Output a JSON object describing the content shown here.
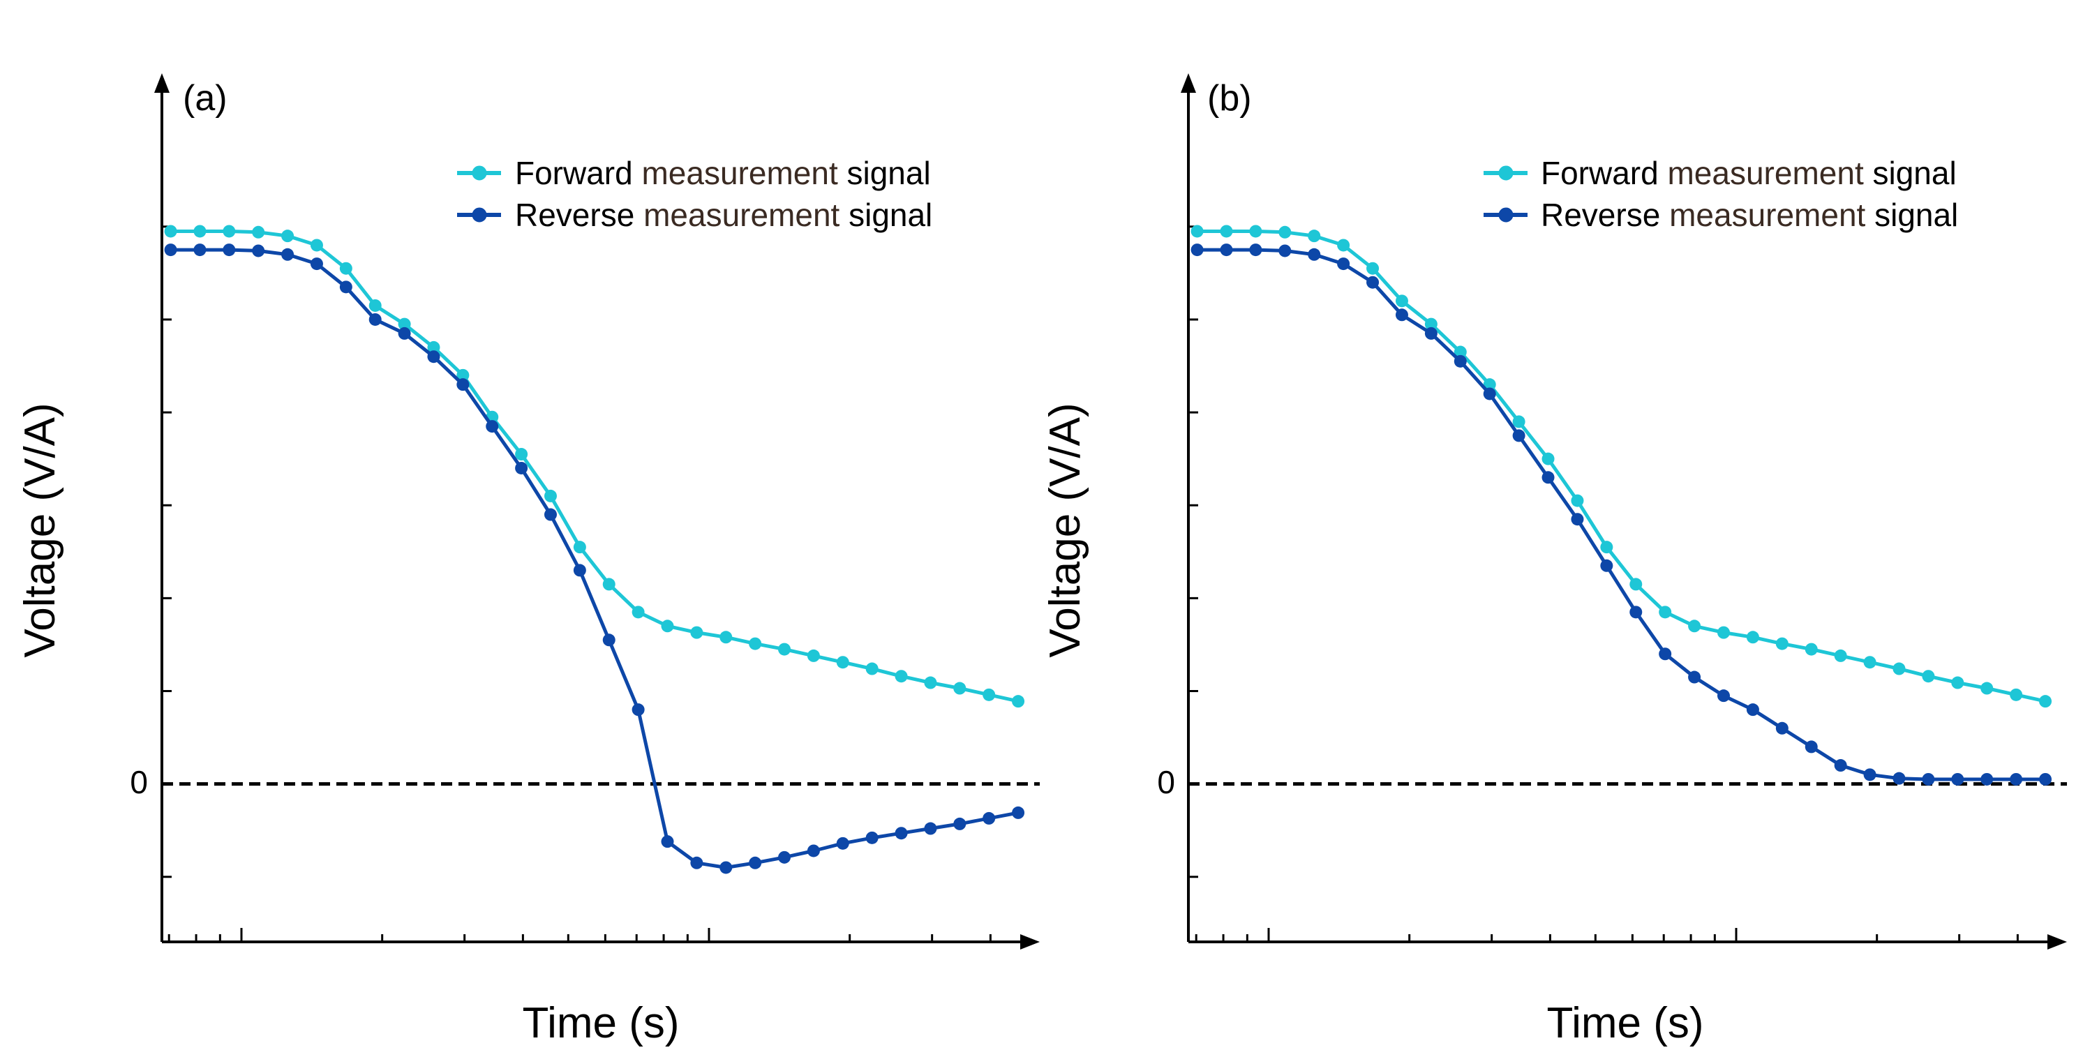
{
  "colors": {
    "forward": "#1EC6D6",
    "reverse": "#0D47A8",
    "axis": "#000000",
    "legend_middle": "#3A2A22"
  },
  "chart_data": [
    {
      "type": "line",
      "panel_label": "(a)",
      "xlabel": "Time (s)",
      "ylabel": "Voltage (V/A)",
      "y_zero_label": "0",
      "reference_line": {
        "y": 0,
        "style": "dashed"
      },
      "xlim": [
        -0.3,
        29.5
      ],
      "ylim": [
        -1.55,
        6.9
      ],
      "legend": {
        "position": "top-right",
        "entries": [
          {
            "series": 0,
            "parts": [
              "Forward ",
              "measurement",
              " signal"
            ]
          },
          {
            "series": 1,
            "parts": [
              "Reverse ",
              "measurement",
              " signal"
            ]
          }
        ]
      },
      "x": [
        0,
        1,
        2,
        3,
        4,
        5,
        6,
        7,
        8,
        9,
        10,
        11,
        12,
        13,
        14,
        15,
        16,
        17,
        18,
        19,
        20,
        21,
        22,
        23,
        24,
        25,
        26,
        27,
        28,
        29
      ],
      "series": [
        {
          "name": "Forward measurement signal",
          "color_key": "forward",
          "values": [
            5.95,
            5.95,
            5.95,
            5.94,
            5.9,
            5.8,
            5.55,
            5.15,
            4.95,
            4.7,
            4.4,
            3.95,
            3.55,
            3.1,
            2.55,
            2.15,
            1.85,
            1.7,
            1.63,
            1.58,
            1.51,
            1.45,
            1.38,
            1.31,
            1.24,
            1.16,
            1.09,
            1.03,
            0.96,
            0.89
          ]
        },
        {
          "name": "Reverse measurement signal",
          "color_key": "reverse",
          "values": [
            5.75,
            5.75,
            5.75,
            5.74,
            5.7,
            5.6,
            5.35,
            5.0,
            4.85,
            4.6,
            4.3,
            3.85,
            3.4,
            2.9,
            2.3,
            1.55,
            0.8,
            -0.62,
            -0.85,
            -0.9,
            -0.85,
            -0.79,
            -0.72,
            -0.64,
            -0.58,
            -0.53,
            -0.48,
            -0.43,
            -0.37,
            -0.31
          ]
        }
      ]
    },
    {
      "type": "line",
      "panel_label": "(b)",
      "xlabel": "Time (s)",
      "ylabel": "Voltage (V/A)",
      "y_zero_label": "0",
      "reference_line": {
        "y": 0,
        "style": "dashed"
      },
      "xlim": [
        -0.3,
        29.5
      ],
      "ylim": [
        -1.55,
        6.9
      ],
      "legend": {
        "position": "top-right",
        "entries": [
          {
            "series": 0,
            "parts": [
              "Forward ",
              "measurement",
              " signal"
            ]
          },
          {
            "series": 1,
            "parts": [
              "Reverse ",
              "measurement",
              " signal"
            ]
          }
        ]
      },
      "x": [
        0,
        1,
        2,
        3,
        4,
        5,
        6,
        7,
        8,
        9,
        10,
        11,
        12,
        13,
        14,
        15,
        16,
        17,
        18,
        19,
        20,
        21,
        22,
        23,
        24,
        25,
        26,
        27,
        28,
        29
      ],
      "series": [
        {
          "name": "Forward measurement signal",
          "color_key": "forward",
          "values": [
            5.95,
            5.95,
            5.95,
            5.94,
            5.9,
            5.8,
            5.55,
            5.2,
            4.95,
            4.65,
            4.3,
            3.9,
            3.5,
            3.05,
            2.55,
            2.15,
            1.85,
            1.7,
            1.63,
            1.58,
            1.51,
            1.45,
            1.38,
            1.31,
            1.24,
            1.16,
            1.09,
            1.03,
            0.96,
            0.89
          ]
        },
        {
          "name": "Reverse measurement signal",
          "color_key": "reverse",
          "values": [
            5.75,
            5.75,
            5.75,
            5.74,
            5.7,
            5.6,
            5.4,
            5.05,
            4.85,
            4.55,
            4.2,
            3.75,
            3.3,
            2.85,
            2.35,
            1.85,
            1.4,
            1.15,
            0.95,
            0.8,
            0.6,
            0.4,
            0.2,
            0.1,
            0.06,
            0.05,
            0.05,
            0.05,
            0.05,
            0.05
          ]
        }
      ]
    }
  ]
}
